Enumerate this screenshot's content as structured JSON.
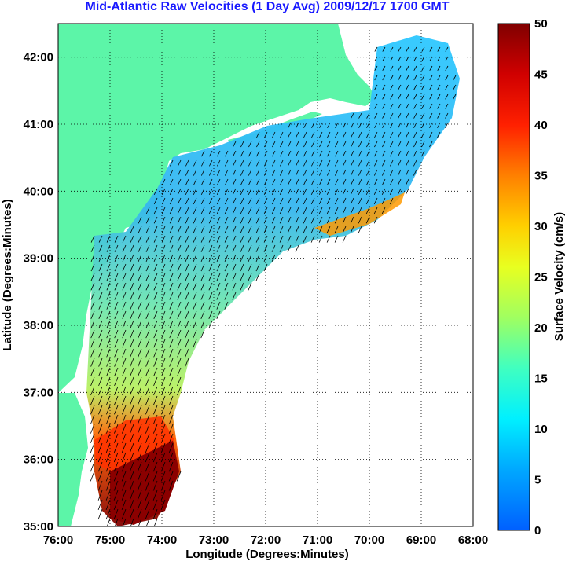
{
  "title": "Mid-Atlantic Raw Velocities (1 Day Avg) 2009/12/17 1700 GMT",
  "map": {
    "xlabel": "Longitude (Degrees:Minutes)",
    "ylabel": "Latitude (Degrees:Minutes)",
    "x_ticks": [
      "76:00",
      "75:00",
      "74:00",
      "73:00",
      "72:00",
      "71:00",
      "70:00",
      "69:00",
      "68:00"
    ],
    "y_ticks": [
      "42:00",
      "41:00",
      "40:00",
      "39:00",
      "38:00",
      "37:00",
      "36:00",
      "35:00"
    ],
    "lon_range": [
      -76,
      -68
    ],
    "lat_range": [
      35,
      42.5
    ],
    "grid": "dotted",
    "land_color": "#5cf5a8",
    "colormap": "jet"
  },
  "colorbar": {
    "label": "Surface Velocity (cm/s)",
    "ticks": [
      "50",
      "45",
      "40",
      "35",
      "30",
      "25",
      "20",
      "15",
      "10",
      "5",
      "0"
    ],
    "range": [
      0,
      50
    ]
  }
}
